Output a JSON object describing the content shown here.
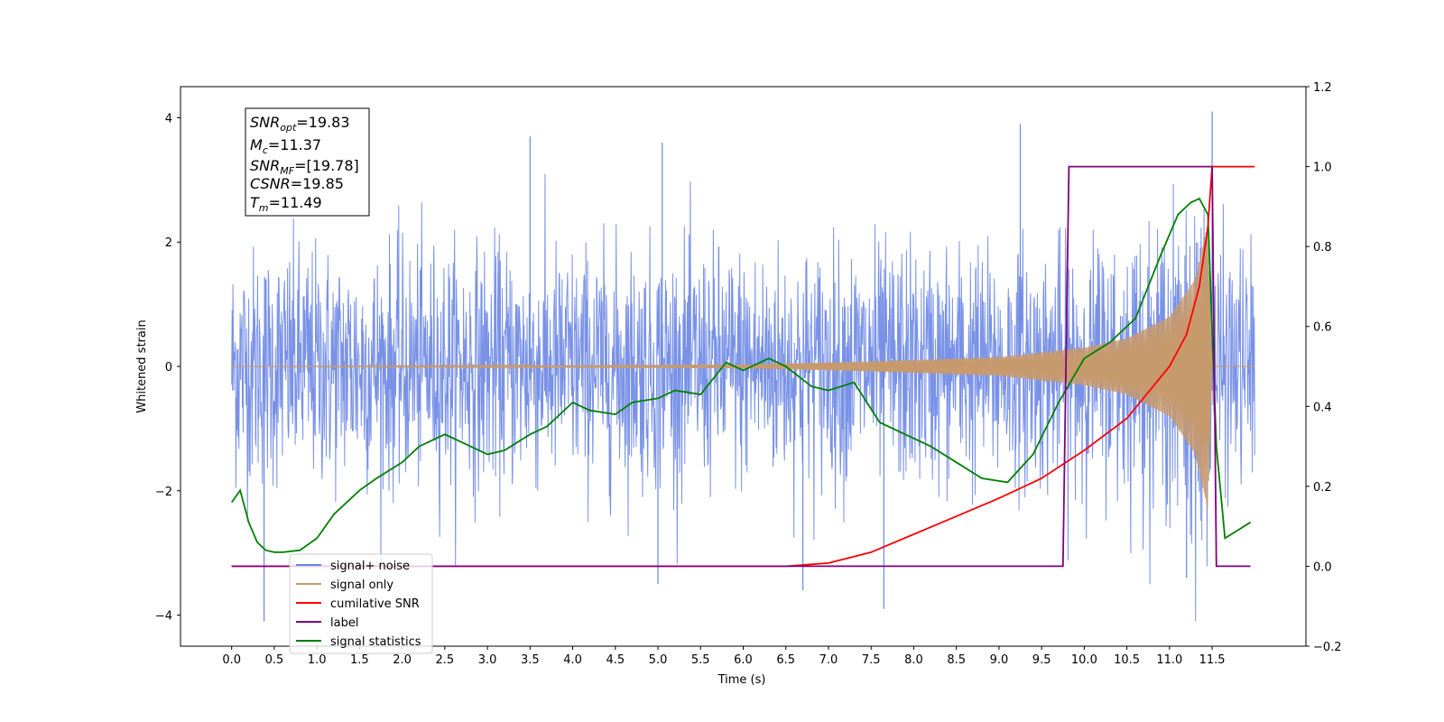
{
  "chart_data": {
    "type": "line",
    "xlabel": "Time (s)",
    "ylabel": "Whitened strain",
    "xlim": [
      -0.6,
      12.6
    ],
    "ylim": [
      -4.5,
      4.5
    ],
    "y2lim": [
      -0.2,
      1.2
    ],
    "x_ticks": [
      0.0,
      0.5,
      1.0,
      1.5,
      2.0,
      2.5,
      3.0,
      3.5,
      4.0,
      4.5,
      5.0,
      5.5,
      6.0,
      6.5,
      7.0,
      7.5,
      8.0,
      8.5,
      9.0,
      9.5,
      10.0,
      10.5,
      11.0,
      11.5
    ],
    "x_tick_labels": [
      "0.0",
      "0.5",
      "1.0",
      "1.5",
      "2.0",
      "2.5",
      "3.0",
      "3.5",
      "4.0",
      "4.5",
      "5.0",
      "5.5",
      "6.0",
      "6.5",
      "7.0",
      "7.5",
      "8.0",
      "8.5",
      "9.0",
      "9.5",
      "10.0",
      "10.5",
      "11.0",
      "11.5"
    ],
    "y_ticks": [
      -4,
      -2,
      0,
      2,
      4
    ],
    "y_tick_labels": [
      "−4",
      "−2",
      "0",
      "2",
      "4"
    ],
    "y2_ticks": [
      -0.2,
      0.0,
      0.2,
      0.4,
      0.6,
      0.8,
      1.0,
      1.2
    ],
    "y2_tick_labels": [
      "−0.2",
      "0.0",
      "0.2",
      "0.4",
      "0.6",
      "0.8",
      "1.0",
      "1.2"
    ],
    "grid": false,
    "legend_position": "lower-left",
    "info_box": {
      "lines": [
        {
          "base": "SNR",
          "sub": "opt",
          "value": "=19.83"
        },
        {
          "base": "M",
          "sub": "c",
          "value": "=11.37"
        },
        {
          "base": "SNR",
          "sub": "MF",
          "value": "=[19.78]"
        },
        {
          "base": "CSNR",
          "sub": "",
          "value": "=19.85"
        },
        {
          "base": "T",
          "sub": "m",
          "value": "=11.49"
        }
      ]
    },
    "series": [
      {
        "name": "signal+ noise",
        "color": "#6a86e4",
        "axis": "left",
        "style": "noise",
        "x_range": [
          0.0,
          12.0
        ],
        "envelope_upper_approx": 2.3,
        "envelope_lower_approx": -2.3,
        "peaks": [
          {
            "x": 0.38,
            "y": -4.1
          },
          {
            "x": 3.5,
            "y": 3.7
          },
          {
            "x": 5.0,
            "y": -3.5
          },
          {
            "x": 5.05,
            "y": 3.6
          },
          {
            "x": 6.7,
            "y": -3.6
          },
          {
            "x": 7.65,
            "y": -3.9
          },
          {
            "x": 9.25,
            "y": 3.9
          },
          {
            "x": 11.5,
            "y": 4.1
          },
          {
            "x": 11.2,
            "y": -3.4
          }
        ]
      },
      {
        "name": "signal only",
        "color": "#c79a6e",
        "axis": "left",
        "style": "chirp",
        "x_range": [
          0.0,
          12.0
        ],
        "amplitude_points": [
          [
            0.0,
            0.0
          ],
          [
            6.0,
            0.03
          ],
          [
            7.5,
            0.08
          ],
          [
            9.0,
            0.15
          ],
          [
            10.0,
            0.3
          ],
          [
            10.5,
            0.45
          ],
          [
            11.0,
            0.8
          ],
          [
            11.3,
            1.4
          ],
          [
            11.45,
            2.3
          ],
          [
            11.5,
            0.0
          ]
        ]
      },
      {
        "name": "cumilative SNR",
        "color": "#ff0000",
        "axis": "right",
        "style": "line",
        "x": [
          0.0,
          6.0,
          6.5,
          7.0,
          7.5,
          8.0,
          8.5,
          9.0,
          9.5,
          10.0,
          10.5,
          11.0,
          11.2,
          11.35,
          11.45,
          11.5,
          12.0
        ],
        "y": [
          0.0,
          0.0,
          0.0,
          0.008,
          0.035,
          0.08,
          0.125,
          0.17,
          0.22,
          0.29,
          0.37,
          0.5,
          0.58,
          0.7,
          0.85,
          1.0,
          1.0
        ]
      },
      {
        "name": "label",
        "color": "#800080",
        "axis": "right",
        "style": "line",
        "x": [
          0.0,
          9.75,
          9.82,
          11.5,
          11.55,
          11.95
        ],
        "y": [
          0.0,
          0.0,
          1.0,
          1.0,
          0.0,
          0.0
        ]
      },
      {
        "name": "signal statistics",
        "color": "#008000",
        "axis": "right",
        "style": "line",
        "x": [
          0.0,
          0.1,
          0.2,
          0.3,
          0.4,
          0.5,
          0.6,
          0.8,
          1.0,
          1.2,
          1.5,
          1.7,
          2.0,
          2.2,
          2.5,
          2.7,
          3.0,
          3.2,
          3.5,
          3.7,
          4.0,
          4.2,
          4.5,
          4.7,
          5.0,
          5.2,
          5.5,
          5.8,
          6.0,
          6.3,
          6.5,
          6.8,
          7.0,
          7.3,
          7.6,
          7.9,
          8.2,
          8.5,
          8.8,
          9.1,
          9.4,
          9.7,
          10.0,
          10.3,
          10.6,
          10.9,
          11.1,
          11.25,
          11.35,
          11.45,
          11.55,
          11.65,
          11.8,
          11.95
        ],
        "y": [
          0.16,
          0.19,
          0.11,
          0.06,
          0.04,
          0.035,
          0.035,
          0.04,
          0.07,
          0.13,
          0.19,
          0.22,
          0.26,
          0.3,
          0.33,
          0.31,
          0.28,
          0.29,
          0.33,
          0.35,
          0.41,
          0.39,
          0.38,
          0.41,
          0.42,
          0.44,
          0.43,
          0.51,
          0.49,
          0.52,
          0.5,
          0.45,
          0.44,
          0.46,
          0.36,
          0.33,
          0.3,
          0.26,
          0.22,
          0.21,
          0.28,
          0.41,
          0.52,
          0.56,
          0.62,
          0.78,
          0.88,
          0.91,
          0.92,
          0.88,
          0.3,
          0.07,
          0.09,
          0.11
        ]
      }
    ]
  }
}
